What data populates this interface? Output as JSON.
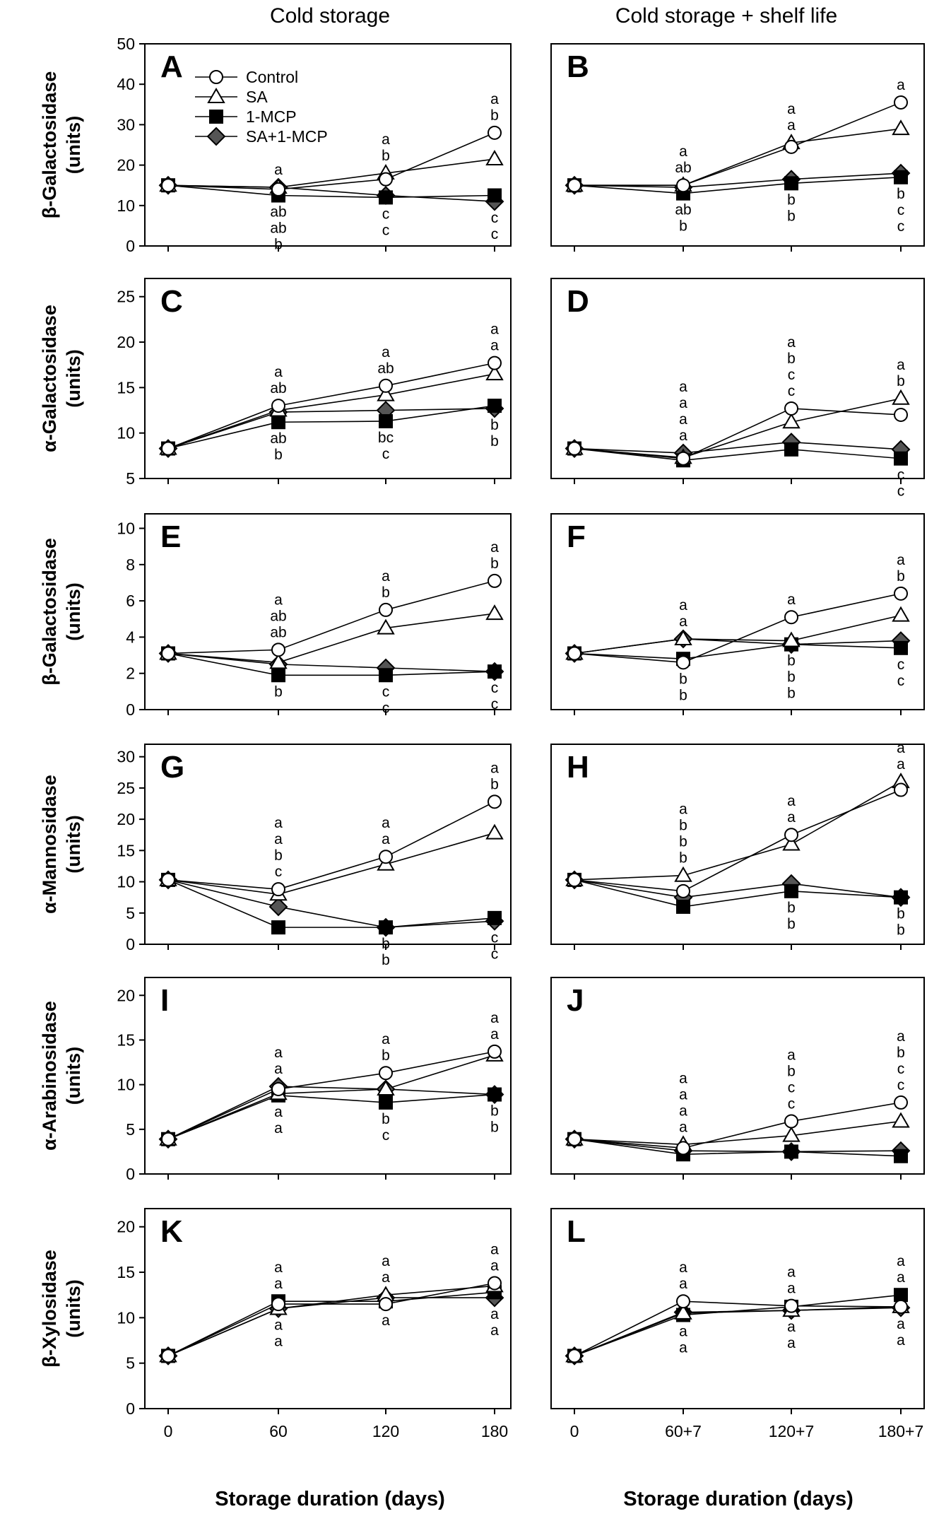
{
  "figure": {
    "col_left_title": "Cold storage",
    "col_right_title": "Cold storage + shelf life",
    "xlabel_left": "Storage duration (days)",
    "xlabel_right": "Storage duration (days)"
  },
  "legend": {
    "items": [
      {
        "name": "Control",
        "marker": "circle-open"
      },
      {
        "name": "SA",
        "marker": "triangle-open"
      },
      {
        "name": "1-MCP",
        "marker": "square-filled"
      },
      {
        "name": "SA+1-MCP",
        "marker": "diamond-filled"
      }
    ]
  },
  "colors": {
    "line": "#000000",
    "diamond_fill": "#555555",
    "open_fill": "#ffffff",
    "square_fill": "#000000"
  },
  "chart_data": [
    {
      "type": "line",
      "panel": "A",
      "column": "left",
      "ylabel": [
        "β-Galactosidase",
        "(units)"
      ],
      "ylim": [
        0,
        50
      ],
      "yticks": [
        0,
        10,
        20,
        30,
        40,
        50
      ],
      "categories": [
        "0",
        "60",
        "120",
        "180"
      ],
      "series": [
        {
          "name": "Control",
          "values": [
            15,
            14,
            16.5,
            28
          ]
        },
        {
          "name": "SA",
          "values": [
            15,
            14.5,
            18,
            21.5
          ]
        },
        {
          "name": "1-MCP",
          "values": [
            15,
            12.5,
            12,
            12.5
          ]
        },
        {
          "name": "SA+1-MCP",
          "values": [
            15,
            14.5,
            12.5,
            11
          ]
        }
      ],
      "annotations": [
        {
          "x": "60",
          "above": [
            "a"
          ],
          "below": [
            "ab",
            "ab",
            "b"
          ]
        },
        {
          "x": "120",
          "above": [
            "a",
            "b"
          ],
          "below": [
            "c",
            "c"
          ]
        },
        {
          "x": "180",
          "above": [
            "a",
            "b"
          ],
          "below": [
            "c",
            "c"
          ]
        }
      ]
    },
    {
      "type": "line",
      "panel": "B",
      "column": "right",
      "ylabel": [],
      "ylim": [
        0,
        50
      ],
      "yticks": [],
      "categories": [
        "0",
        "60+7",
        "120+7",
        "180+7"
      ],
      "series": [
        {
          "name": "Control",
          "values": [
            15,
            15,
            24.5,
            35.5
          ]
        },
        {
          "name": "SA",
          "values": [
            15,
            15,
            25.5,
            29
          ]
        },
        {
          "name": "1-MCP",
          "values": [
            15,
            13,
            15.5,
            17
          ]
        },
        {
          "name": "SA+1-MCP",
          "values": [
            15,
            14.5,
            16.5,
            18
          ]
        }
      ],
      "annotations": [
        {
          "x": "60+7",
          "above": [
            "a",
            "ab"
          ],
          "below": [
            "ab",
            "b"
          ]
        },
        {
          "x": "120+7",
          "above": [
            "a",
            "a"
          ],
          "below": [
            "b",
            "b"
          ]
        },
        {
          "x": "180+7",
          "above": [
            "a"
          ],
          "below": [
            "b",
            "c",
            "c"
          ]
        }
      ]
    },
    {
      "type": "line",
      "panel": "C",
      "column": "left",
      "ylabel": [
        "α-Galactosidase",
        "(units)"
      ],
      "ylim": [
        5,
        27
      ],
      "yticks": [
        5,
        10,
        15,
        20,
        25
      ],
      "categories": [
        "0",
        "60",
        "120",
        "180"
      ],
      "series": [
        {
          "name": "Control",
          "values": [
            8.3,
            13,
            15.2,
            17.7
          ]
        },
        {
          "name": "SA",
          "values": [
            8.3,
            12.5,
            14.2,
            16.5
          ]
        },
        {
          "name": "1-MCP",
          "values": [
            8.3,
            11.2,
            11.3,
            13
          ]
        },
        {
          "name": "SA+1-MCP",
          "values": [
            8.3,
            12.3,
            12.5,
            12.7
          ]
        }
      ],
      "annotations": [
        {
          "x": "60",
          "above": [
            "a",
            "ab"
          ],
          "below": [
            "ab",
            "b"
          ]
        },
        {
          "x": "120",
          "above": [
            "a",
            "ab"
          ],
          "below": [
            "bc",
            "c"
          ]
        },
        {
          "x": "180",
          "above": [
            "a",
            "a"
          ],
          "below": [
            "b",
            "b"
          ]
        }
      ]
    },
    {
      "type": "line",
      "panel": "D",
      "column": "right",
      "ylabel": [],
      "ylim": [
        5,
        27
      ],
      "yticks": [],
      "categories": [
        "0",
        "60+7",
        "120+7",
        "180+7"
      ],
      "series": [
        {
          "name": "Control",
          "values": [
            8.3,
            7.2,
            12.7,
            12
          ]
        },
        {
          "name": "SA",
          "values": [
            8.3,
            7.3,
            11.2,
            13.8
          ]
        },
        {
          "name": "1-MCP",
          "values": [
            8.3,
            7,
            8.2,
            7.2
          ]
        },
        {
          "name": "SA+1-MCP",
          "values": [
            8.3,
            7.8,
            9,
            8.2
          ]
        }
      ],
      "annotations": [
        {
          "x": "60+7",
          "above": [
            "a",
            "a",
            "a",
            "a"
          ],
          "below": []
        },
        {
          "x": "120+7",
          "above": [
            "a",
            "b",
            "c",
            "c"
          ],
          "below": []
        },
        {
          "x": "180+7",
          "above": [
            "a",
            "b"
          ],
          "below": [
            "c",
            "c"
          ]
        }
      ]
    },
    {
      "type": "line",
      "panel": "E",
      "column": "left",
      "ylabel": [
        "β-Galactosidase",
        "(units)"
      ],
      "ylim": [
        0,
        10.8
      ],
      "yticks": [
        0,
        2,
        4,
        6,
        8,
        10
      ],
      "categories": [
        "0",
        "60",
        "120",
        "180"
      ],
      "series": [
        {
          "name": "Control",
          "values": [
            3.1,
            3.3,
            5.5,
            7.1
          ]
        },
        {
          "name": "SA",
          "values": [
            3.1,
            2.6,
            4.5,
            5.3
          ]
        },
        {
          "name": "1-MCP",
          "values": [
            3.1,
            1.9,
            1.9,
            2.1
          ]
        },
        {
          "name": "SA+1-MCP",
          "values": [
            3.1,
            2.5,
            2.3,
            2.1
          ]
        }
      ],
      "annotations": [
        {
          "x": "60",
          "above": [
            "a",
            "ab",
            "ab"
          ],
          "below": [
            "b"
          ]
        },
        {
          "x": "120",
          "above": [
            "a",
            "b"
          ],
          "below": [
            "c",
            "c"
          ]
        },
        {
          "x": "180",
          "above": [
            "a",
            "b"
          ],
          "below": [
            "c",
            "c"
          ]
        }
      ]
    },
    {
      "type": "line",
      "panel": "F",
      "column": "right",
      "ylabel": [],
      "ylim": [
        0,
        10.8
      ],
      "yticks": [],
      "categories": [
        "0",
        "60+7",
        "120+7",
        "180+7"
      ],
      "series": [
        {
          "name": "Control",
          "values": [
            3.1,
            2.6,
            5.1,
            6.4
          ]
        },
        {
          "name": "SA",
          "values": [
            3.1,
            3.9,
            3.8,
            5.2
          ]
        },
        {
          "name": "1-MCP",
          "values": [
            3.1,
            2.8,
            3.6,
            3.4
          ]
        },
        {
          "name": "SA+1-MCP",
          "values": [
            3.1,
            3.9,
            3.6,
            3.8
          ]
        }
      ],
      "annotations": [
        {
          "x": "60+7",
          "above": [
            "a",
            "a"
          ],
          "below": [
            "b",
            "b"
          ]
        },
        {
          "x": "120+7",
          "above": [
            "a"
          ],
          "below": [
            "b",
            "b",
            "b"
          ]
        },
        {
          "x": "180+7",
          "above": [
            "a",
            "b"
          ],
          "below": [
            "c",
            "c"
          ]
        }
      ]
    },
    {
      "type": "line",
      "panel": "G",
      "column": "left",
      "ylabel": [
        "α-Mannosidase",
        "(units)"
      ],
      "ylim": [
        0,
        32
      ],
      "yticks": [
        0,
        5,
        10,
        15,
        20,
        25,
        30
      ],
      "categories": [
        "0",
        "60",
        "120",
        "180"
      ],
      "series": [
        {
          "name": "Control",
          "values": [
            10.3,
            8.8,
            14,
            22.8
          ]
        },
        {
          "name": "SA",
          "values": [
            10.3,
            8,
            12.8,
            17.8
          ]
        },
        {
          "name": "1-MCP",
          "values": [
            10.3,
            2.7,
            2.7,
            4.2
          ]
        },
        {
          "name": "SA+1-MCP",
          "values": [
            10.3,
            6,
            2.7,
            3.7
          ]
        }
      ],
      "annotations": [
        {
          "x": "60",
          "above": [
            "a",
            "a",
            "b",
            "c"
          ],
          "below": []
        },
        {
          "x": "120",
          "above": [
            "a",
            "a"
          ],
          "below": [
            "b",
            "b"
          ]
        },
        {
          "x": "180",
          "above": [
            "a",
            "b"
          ],
          "below": [
            "c",
            "c"
          ]
        }
      ]
    },
    {
      "type": "line",
      "panel": "H",
      "column": "right",
      "ylabel": [],
      "ylim": [
        0,
        32
      ],
      "yticks": [],
      "categories": [
        "0",
        "60+7",
        "120+7",
        "180+7"
      ],
      "series": [
        {
          "name": "Control",
          "values": [
            10.3,
            8.5,
            17.5,
            24.7
          ]
        },
        {
          "name": "SA",
          "values": [
            10.3,
            11,
            16,
            26
          ]
        },
        {
          "name": "1-MCP",
          "values": [
            10.3,
            6,
            8.5,
            7.5
          ]
        },
        {
          "name": "SA+1-MCP",
          "values": [
            10.3,
            7.5,
            9.7,
            7.5
          ]
        }
      ],
      "annotations": [
        {
          "x": "60+7",
          "above": [
            "a",
            "b",
            "b",
            "b"
          ],
          "below": []
        },
        {
          "x": "120+7",
          "above": [
            "a",
            "a"
          ],
          "below": [
            "b",
            "b"
          ]
        },
        {
          "x": "180+7",
          "above": [
            "a",
            "a"
          ],
          "below": [
            "b",
            "b"
          ]
        }
      ]
    },
    {
      "type": "line",
      "panel": "I",
      "column": "left",
      "ylabel": [
        "α-Arabinosidase",
        "(units)"
      ],
      "ylim": [
        0,
        22
      ],
      "yticks": [
        0,
        5,
        10,
        15,
        20
      ],
      "categories": [
        "0",
        "60",
        "120",
        "180"
      ],
      "series": [
        {
          "name": "Control",
          "values": [
            3.9,
            9.5,
            11.3,
            13.7
          ]
        },
        {
          "name": "SA",
          "values": [
            3.9,
            9,
            9.5,
            13.3
          ]
        },
        {
          "name": "1-MCP",
          "values": [
            3.9,
            8.8,
            8,
            8.9
          ]
        },
        {
          "name": "SA+1-MCP",
          "values": [
            3.9,
            9.8,
            9.5,
            8.9
          ]
        }
      ],
      "annotations": [
        {
          "x": "60",
          "above": [
            "a",
            "a"
          ],
          "below": [
            "a",
            "a"
          ]
        },
        {
          "x": "120",
          "above": [
            "a",
            "b"
          ],
          "below": [
            "b",
            "c"
          ]
        },
        {
          "x": "180",
          "above": [
            "a",
            "a"
          ],
          "below": [
            "b",
            "b"
          ]
        }
      ]
    },
    {
      "type": "line",
      "panel": "J",
      "column": "right",
      "ylabel": [],
      "ylim": [
        0,
        22
      ],
      "yticks": [],
      "categories": [
        "0",
        "60+7",
        "120+7",
        "180+7"
      ],
      "series": [
        {
          "name": "Control",
          "values": [
            3.9,
            2.9,
            5.9,
            8
          ]
        },
        {
          "name": "SA",
          "values": [
            3.9,
            3.3,
            4.3,
            5.9
          ]
        },
        {
          "name": "1-MCP",
          "values": [
            3.9,
            2.2,
            2.5,
            2
          ]
        },
        {
          "name": "SA+1-MCP",
          "values": [
            3.9,
            2.6,
            2.5,
            2.6
          ]
        }
      ],
      "annotations": [
        {
          "x": "60+7",
          "above": [
            "a",
            "a",
            "a",
            "a"
          ],
          "below": []
        },
        {
          "x": "120+7",
          "above": [
            "a",
            "b",
            "c",
            "c"
          ],
          "below": []
        },
        {
          "x": "180+7",
          "above": [
            "a",
            "b",
            "c",
            "c"
          ],
          "below": []
        }
      ]
    },
    {
      "type": "line",
      "panel": "K",
      "column": "left",
      "ylabel": [
        "β-Xylosidase",
        "(units)"
      ],
      "ylim": [
        0,
        22
      ],
      "yticks": [
        0,
        5,
        10,
        15,
        20
      ],
      "categories": [
        "0",
        "60",
        "120",
        "180"
      ],
      "series": [
        {
          "name": "Control",
          "values": [
            5.8,
            11.5,
            11.5,
            13.8
          ]
        },
        {
          "name": "SA",
          "values": [
            5.8,
            11,
            12.5,
            13.5
          ]
        },
        {
          "name": "1-MCP",
          "values": [
            5.8,
            11.8,
            11.8,
            12.8
          ]
        },
        {
          "name": "SA+1-MCP",
          "values": [
            5.8,
            11,
            12.2,
            12.2
          ]
        }
      ],
      "annotations": [
        {
          "x": "60",
          "above": [
            "a",
            "a"
          ],
          "below": [
            "a",
            "a"
          ]
        },
        {
          "x": "120",
          "above": [
            "a",
            "a"
          ],
          "below": [
            "a"
          ]
        },
        {
          "x": "180",
          "above": [
            "a",
            "a"
          ],
          "below": [
            "a",
            "a"
          ]
        }
      ]
    },
    {
      "type": "line",
      "panel": "L",
      "column": "right",
      "ylabel": [],
      "ylim": [
        0,
        22
      ],
      "yticks": [],
      "categories": [
        "0",
        "60+7",
        "120+7",
        "180+7"
      ],
      "series": [
        {
          "name": "Control",
          "values": [
            5.8,
            11.8,
            11.3,
            11.2
          ]
        },
        {
          "name": "SA",
          "values": [
            5.8,
            10.5,
            10.8,
            11.2
          ]
        },
        {
          "name": "1-MCP",
          "values": [
            5.8,
            10.3,
            11.2,
            12.5
          ]
        },
        {
          "name": "SA+1-MCP",
          "values": [
            5.8,
            10.6,
            10.8,
            11.1
          ]
        }
      ],
      "annotations": [
        {
          "x": "60+7",
          "above": [
            "a",
            "a"
          ],
          "below": [
            "a",
            "a"
          ]
        },
        {
          "x": "120+7",
          "above": [
            "a",
            "a"
          ],
          "below": [
            "a",
            "a"
          ]
        },
        {
          "x": "180+7",
          "above": [
            "a",
            "a"
          ],
          "below": [
            "a",
            "a"
          ]
        }
      ]
    }
  ]
}
